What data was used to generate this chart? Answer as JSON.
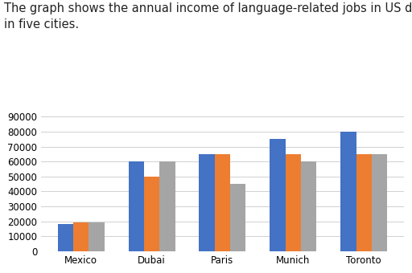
{
  "title_line1": "The graph shows the annual income of language-related jobs in US dollars",
  "title_line2": "in five cities.",
  "cities": [
    "Mexico",
    "Dubai",
    "Paris",
    "Munich",
    "Toronto"
  ],
  "series": {
    "Interpreter": [
      18000,
      60000,
      65000,
      75000,
      80000
    ],
    "Translator": [
      19000,
      50000,
      65000,
      65000,
      65000
    ],
    "Language Teacher": [
      19500,
      60000,
      45000,
      60000,
      65000
    ]
  },
  "bar_colors": {
    "Interpreter": "#4472c4",
    "Translator": "#ed7d31",
    "Language Teacher": "#a5a5a5"
  },
  "ylim": [
    0,
    95000
  ],
  "yticks": [
    0,
    10000,
    20000,
    30000,
    40000,
    50000,
    60000,
    70000,
    80000,
    90000
  ],
  "background_color": "#ffffff",
  "title_fontsize": 10.5,
  "legend_fontsize": 8.5,
  "tick_fontsize": 8.5,
  "bar_width": 0.22
}
